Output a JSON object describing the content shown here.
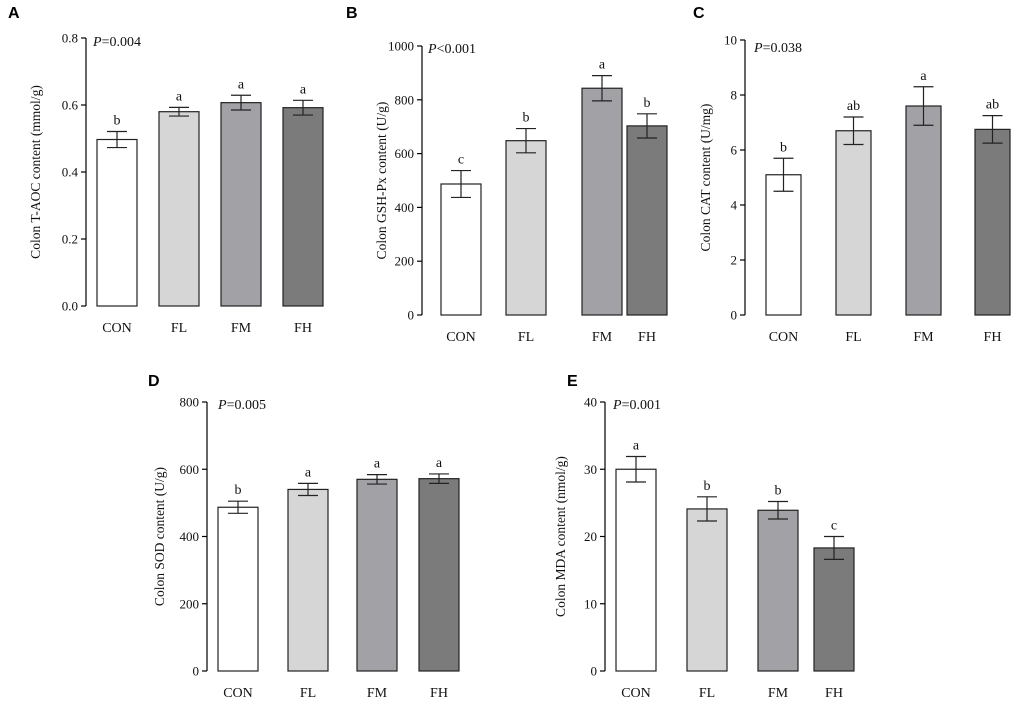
{
  "chart_data": [
    {
      "panel": "A",
      "type": "bar",
      "categories": [
        "CON",
        "FL",
        "FM",
        "FH"
      ],
      "values": [
        0.497,
        0.58,
        0.607,
        0.592
      ],
      "errors": [
        0.024,
        0.013,
        0.022,
        0.022
      ],
      "significance": [
        "b",
        "a",
        "a",
        "a"
      ],
      "p_label": "P",
      "p_value": "=0.004",
      "ylabel": "Colon T-AOC content (mmol/g)",
      "ylim": [
        0,
        0.8
      ],
      "yticks": [
        "0.0",
        "0.2",
        "0.4",
        "0.6",
        "0.8"
      ],
      "bar_colors": [
        "#ffffff",
        "#d6d6d6",
        "#a2a2a6",
        "#7b7b7b"
      ]
    },
    {
      "panel": "B",
      "type": "bar",
      "categories": [
        "CON",
        "FL",
        "FM",
        "FH"
      ],
      "values": [
        487,
        648,
        843,
        703
      ],
      "errors": [
        50,
        45,
        47,
        45
      ],
      "significance": [
        "c",
        "b",
        "a",
        "b"
      ],
      "p_label": "P",
      "p_value": "<0.001",
      "ylabel": "Colon GSH-Px content (U/g)",
      "ylim": [
        0,
        1000
      ],
      "yticks": [
        "0",
        "200",
        "400",
        "600",
        "800",
        "1000"
      ],
      "bar_colors": [
        "#ffffff",
        "#d6d6d6",
        "#a2a2a6",
        "#7b7b7b"
      ]
    },
    {
      "panel": "C",
      "type": "bar",
      "categories": [
        "CON",
        "FL",
        "FM",
        "FH"
      ],
      "values": [
        5.1,
        6.7,
        7.6,
        6.75
      ],
      "errors": [
        0.6,
        0.5,
        0.7,
        0.5
      ],
      "significance": [
        "b",
        "ab",
        "a",
        "ab"
      ],
      "p_label": "P",
      "p_value": "=0.038",
      "ylabel": "Colon CAT content (U/mg)",
      "ylim": [
        0,
        10
      ],
      "yticks": [
        "0",
        "2",
        "4",
        "6",
        "8",
        "10"
      ],
      "bar_colors": [
        "#ffffff",
        "#d6d6d6",
        "#a2a2a6",
        "#7b7b7b"
      ]
    },
    {
      "panel": "D",
      "type": "bar",
      "categories": [
        "CON",
        "FL",
        "FM",
        "FH"
      ],
      "values": [
        487,
        540,
        570,
        572
      ],
      "errors": [
        18,
        18,
        14,
        14
      ],
      "significance": [
        "b",
        "a",
        "a",
        "a"
      ],
      "p_label": "P",
      "p_value": "=0.005",
      "ylabel": "Colon SOD content (U/g)",
      "ylim": [
        0,
        800
      ],
      "yticks": [
        "0",
        "200",
        "400",
        "600",
        "800"
      ],
      "bar_colors": [
        "#ffffff",
        "#d6d6d6",
        "#a2a2a6",
        "#7b7b7b"
      ]
    },
    {
      "panel": "E",
      "type": "bar",
      "categories": [
        "CON",
        "FL",
        "FM",
        "FH"
      ],
      "values": [
        30.0,
        24.1,
        23.9,
        18.3
      ],
      "errors": [
        1.9,
        1.8,
        1.3,
        1.7
      ],
      "significance": [
        "a",
        "b",
        "b",
        "c"
      ],
      "p_label": "P",
      "p_value": "=0.001",
      "ylabel": "Colon MDA content (nmol/g)",
      "ylim": [
        0,
        40
      ],
      "yticks": [
        "0",
        "10",
        "20",
        "30",
        "40"
      ],
      "bar_colors": [
        "#ffffff",
        "#d6d6d6",
        "#a2a2a6",
        "#7b7b7b"
      ]
    }
  ]
}
